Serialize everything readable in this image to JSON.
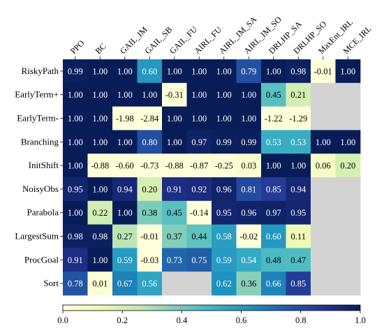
{
  "chart_data": {
    "type": "heatmap",
    "title": "",
    "xlabel": "",
    "ylabel": "",
    "columns": [
      "PPO",
      "BC",
      "GAIL_IM",
      "GAIL_SB",
      "GAIL_FU",
      "AIRL_FU",
      "AIRL_IM_SA",
      "AIRL_IM_SO",
      "DRLHP_SA",
      "DRLHP_SO",
      "MaxEnt_IRL",
      "MCE_IRL"
    ],
    "rows": [
      "RiskyPath",
      "EarlyTerm+",
      "EarlyTerm-",
      "Branching",
      "InitShift",
      "NoisyObs",
      "Parabola",
      "LargestSum",
      "ProcGoal",
      "Sort"
    ],
    "cell_labels": [
      [
        "0.99",
        "1.00",
        "1.00",
        "0.60",
        "1.00",
        "1.00",
        "1.00",
        "0.79",
        "1.00",
        "0.98",
        "-0.01",
        "1.00"
      ],
      [
        "1.00",
        "1.00",
        "1.00",
        "1.00",
        "-0.31",
        "1.00",
        "1.00",
        "1.00",
        "0.45",
        "0.21",
        "",
        ""
      ],
      [
        "1.00",
        "1.00",
        "-1.98",
        "-2.84",
        "1.00",
        "1.00",
        "1.00",
        "1.00",
        "-1.22",
        "-1.29",
        "",
        ""
      ],
      [
        "1.00",
        "1.00",
        "1.00",
        "0.80",
        "1.00",
        "0.97",
        "0.99",
        "0.99",
        "0.53",
        "0.53",
        "1.00",
        "1.00"
      ],
      [
        "1.00",
        "-0.88",
        "-0.60",
        "-0.73",
        "-0.88",
        "-0.87",
        "-0.25",
        "0.03",
        "1.00",
        "1.00",
        "0.06",
        "0.20"
      ],
      [
        "0.95",
        "1.00",
        "0.94",
        "0.20",
        "0.91",
        "0.92",
        "0.96",
        "0.81",
        "0.85",
        "0.94",
        "",
        ""
      ],
      [
        "1.00",
        "0.22",
        "1.00",
        "0.38",
        "0.45",
        "-0.14",
        "0.95",
        "0.96",
        "0.97",
        "0.95",
        "",
        ""
      ],
      [
        "0.98",
        "0.98",
        "0.27",
        "-0.01",
        "0.37",
        "0.44",
        "0.58",
        "-0.02",
        "0.60",
        "0.11",
        "",
        ""
      ],
      [
        "0.91",
        "1.00",
        "0.59",
        "-0.03",
        "0.73",
        "0.75",
        "0.59",
        "0.54",
        "0.48",
        "0.47",
        "",
        ""
      ],
      [
        "0.78",
        "0.01",
        "0.67",
        "0.56",
        "",
        "",
        "0.62",
        "0.36",
        "0.66",
        "0.85",
        "",
        ""
      ]
    ],
    "values": [
      [
        0.99,
        1.0,
        1.0,
        0.6,
        1.0,
        1.0,
        1.0,
        0.79,
        1.0,
        0.98,
        -0.01,
        1.0
      ],
      [
        1.0,
        1.0,
        1.0,
        1.0,
        -0.31,
        1.0,
        1.0,
        1.0,
        0.45,
        0.21,
        null,
        null
      ],
      [
        1.0,
        1.0,
        -1.98,
        -2.84,
        1.0,
        1.0,
        1.0,
        1.0,
        -1.22,
        -1.29,
        null,
        null
      ],
      [
        1.0,
        1.0,
        1.0,
        0.8,
        1.0,
        0.97,
        0.99,
        0.99,
        0.53,
        0.53,
        1.0,
        1.0
      ],
      [
        1.0,
        -0.88,
        -0.6,
        -0.73,
        -0.88,
        -0.87,
        -0.25,
        0.03,
        1.0,
        1.0,
        0.06,
        0.2
      ],
      [
        0.95,
        1.0,
        0.94,
        0.2,
        0.91,
        0.92,
        0.96,
        0.81,
        0.85,
        0.94,
        null,
        null
      ],
      [
        1.0,
        0.22,
        1.0,
        0.38,
        0.45,
        -0.14,
        0.95,
        0.96,
        0.97,
        0.95,
        null,
        null
      ],
      [
        0.98,
        0.98,
        0.27,
        -0.01,
        0.37,
        0.44,
        0.58,
        -0.02,
        0.6,
        0.11,
        null,
        null
      ],
      [
        0.91,
        1.0,
        0.59,
        -0.03,
        0.73,
        0.75,
        0.59,
        0.54,
        0.48,
        0.47,
        null,
        null
      ],
      [
        0.78,
        0.01,
        0.67,
        0.56,
        null,
        null,
        0.62,
        0.36,
        0.66,
        0.85,
        null,
        null
      ]
    ],
    "missing_color": "#d3d3d3",
    "colormap": "YlGnBu",
    "color_range": [
      0,
      1
    ],
    "colorbar": {
      "orientation": "horizontal",
      "placement": "bottom",
      "ticks": [
        0.0,
        0.2,
        0.4,
        0.6,
        0.8,
        1.0
      ],
      "tick_labels": [
        "0.0",
        "0.2",
        "0.4",
        "0.6",
        "0.8",
        "1.0"
      ]
    },
    "grid": false
  }
}
